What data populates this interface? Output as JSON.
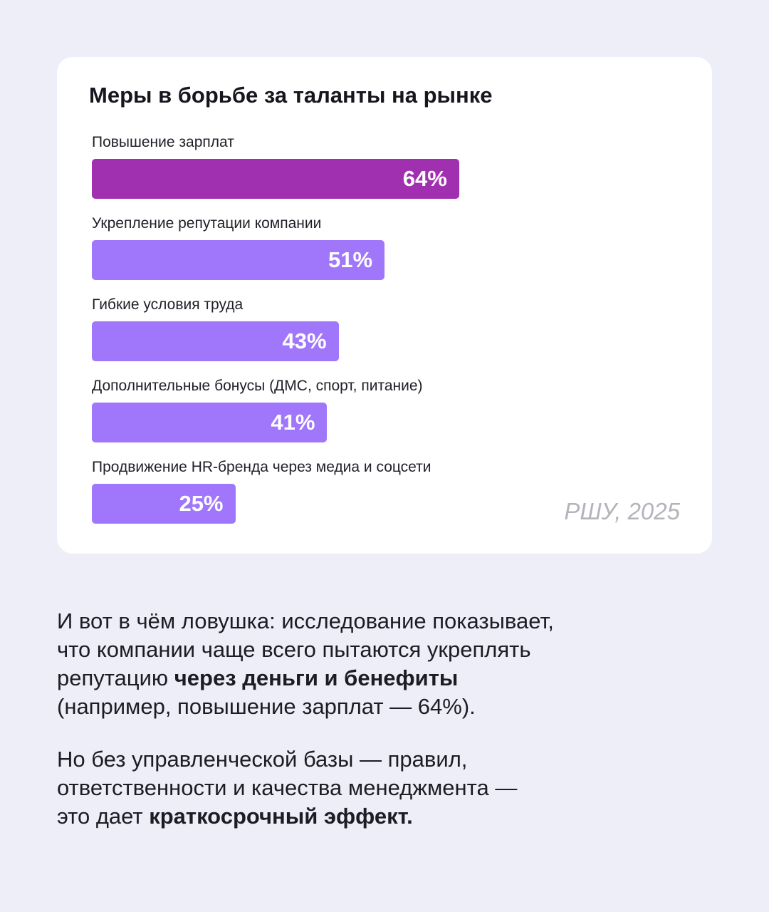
{
  "chart_data": {
    "type": "bar",
    "orientation": "horizontal",
    "title": "Меры в борьбе за таланты на рынке",
    "categories": [
      "Повышение зарплат",
      "Укрепление репутации компании",
      "Гибкие условия труда",
      "Дополнительные бонусы (ДМС, спорт, питание)",
      "Продвижение HR-бренда через медиа и соцсети"
    ],
    "values": [
      64,
      51,
      43,
      41,
      25
    ],
    "value_labels": [
      "64%",
      "51%",
      "43%",
      "41%",
      "25%"
    ],
    "unit": "%",
    "xlim": [
      0,
      100
    ],
    "grid": false,
    "highlight_index": 0,
    "colors": {
      "highlight": "#a030b0",
      "default": "#a077fb"
    },
    "source": "РШУ, 2025"
  },
  "paragraphs": [
    {
      "line1": "И вот в чём ловушка: исследование показывает,",
      "line2": "что компании чаще всего пытаются укреплять",
      "line3_plain": "репутацию ",
      "line3_bold": "через деньги и бенефиты",
      "line4": "(например, повышение зарплат — 64%)."
    },
    {
      "line1": "Но без управленческой базы — правил,",
      "line2": "ответственности и качества менеджмента —",
      "line3_plain": "это дает ",
      "line3_bold": "краткосрочный эффект."
    }
  ],
  "colors": {
    "background": "#eeeef8",
    "card": "#ffffff",
    "text": "#1c1c24",
    "source": "#b3b3bb"
  }
}
